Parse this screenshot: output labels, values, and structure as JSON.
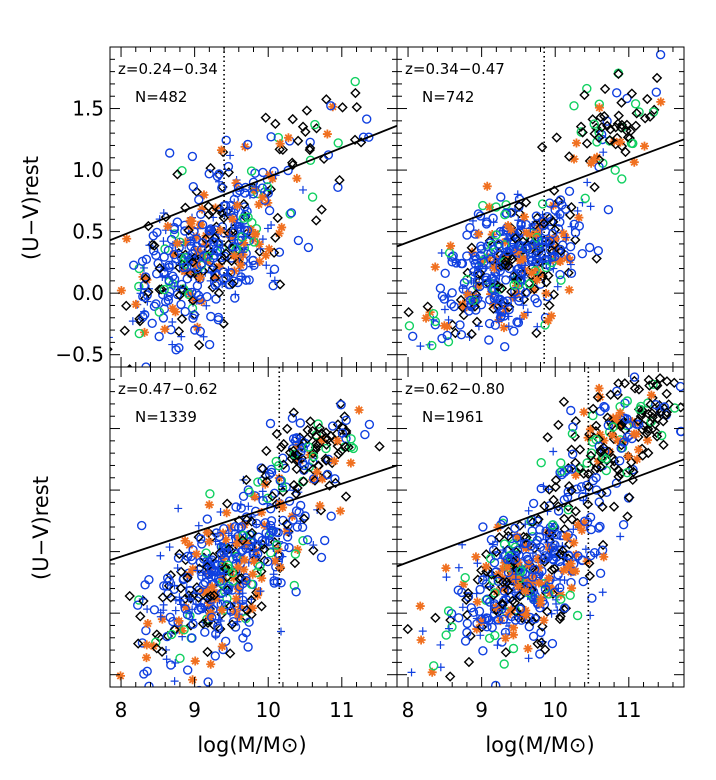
{
  "chart_data": {
    "type": "scatter",
    "layout": "2x2 panels, shared axes",
    "xlabel": "log(M/M⊙)",
    "ylabel": "(U−V)rest",
    "xlim": [
      7.85,
      11.75
    ],
    "ylim": [
      -0.6,
      2.0
    ],
    "x_ticks": [
      8,
      9,
      10,
      11
    ],
    "y_ticks": [
      -0.5,
      0.0,
      0.5,
      1.0,
      1.5
    ],
    "y_tick_labels": [
      "−0.5",
      "0.0",
      "0.5",
      "1.0",
      "1.5"
    ],
    "colors": {
      "diamond": "#000000",
      "circle": "#1040e0",
      "green_circle": "#10d060",
      "plus": "#1040e0",
      "asterisk": "#f07020",
      "line": "#000000"
    },
    "panels": [
      {
        "z_label": "z=0.24−0.34",
        "n_label": "N=482",
        "vline_x": 9.4,
        "fit_line": {
          "x": [
            7.85,
            11.75
          ],
          "y": [
            0.43,
            1.36
          ]
        },
        "cloud": {
          "center_x": 9.2,
          "center_y": 0.35,
          "slope": 0.35,
          "spread_x": 0.55,
          "spread_y": 0.28,
          "count": 482
        },
        "red_clump": {
          "center_x": 10.6,
          "center_y": 1.3,
          "spread_x": 0.4,
          "spread_y": 0.2,
          "count": 40
        }
      },
      {
        "z_label": "z=0.34−0.47",
        "n_label": "N=742",
        "vline_x": 9.85,
        "fit_line": {
          "x": [
            7.85,
            11.75
          ],
          "y": [
            0.38,
            1.25
          ]
        },
        "cloud": {
          "center_x": 9.4,
          "center_y": 0.25,
          "slope": 0.32,
          "spread_x": 0.5,
          "spread_y": 0.25,
          "count": 742
        },
        "red_clump": {
          "center_x": 10.8,
          "center_y": 1.35,
          "spread_x": 0.35,
          "spread_y": 0.18,
          "count": 80
        }
      },
      {
        "z_label": "z=0.47−0.62",
        "n_label": "N=1339",
        "vline_x": 10.15,
        "fit_line": {
          "x": [
            7.85,
            11.75
          ],
          "y": [
            0.43,
            1.2
          ]
        },
        "cloud": {
          "center_x": 9.4,
          "center_y": 0.3,
          "slope": 0.35,
          "spread_x": 0.55,
          "spread_y": 0.28,
          "count": 1339
        },
        "red_clump": {
          "center_x": 10.6,
          "center_y": 1.3,
          "spread_x": 0.4,
          "spread_y": 0.18,
          "count": 140
        }
      },
      {
        "z_label": "z=0.62−0.80",
        "n_label": "N=1961",
        "vline_x": 10.45,
        "fit_line": {
          "x": [
            7.85,
            11.75
          ],
          "y": [
            0.38,
            1.25
          ]
        },
        "cloud": {
          "center_x": 9.6,
          "center_y": 0.3,
          "slope": 0.35,
          "spread_x": 0.5,
          "spread_y": 0.28,
          "count": 1961
        },
        "red_clump": {
          "center_x": 10.9,
          "center_y": 1.45,
          "spread_x": 0.4,
          "spread_y": 0.2,
          "count": 200
        }
      }
    ],
    "marker_fractions": {
      "circle": 0.42,
      "plus": 0.18,
      "asterisk": 0.14,
      "diamond": 0.18,
      "green_circle": 0.08
    }
  }
}
